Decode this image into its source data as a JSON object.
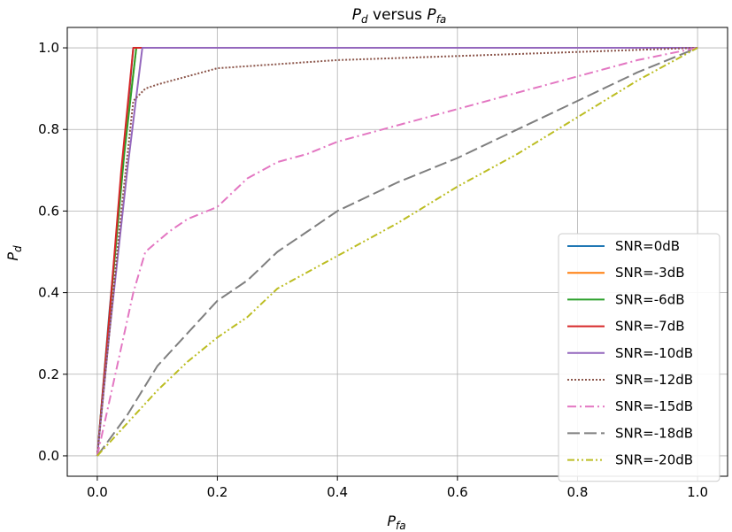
{
  "chart_data": {
    "type": "line",
    "title": {
      "main": "P",
      "main_sub": "d",
      "mid": " versus ",
      "second": "P",
      "second_sub": "fa"
    },
    "xlabel": {
      "main": "P",
      "sub": "fa"
    },
    "ylabel": {
      "main": "P",
      "sub": "d"
    },
    "xlim": [
      -0.05,
      1.05
    ],
    "ylim": [
      -0.05,
      1.05
    ],
    "x_ticks": [
      0.0,
      0.2,
      0.4,
      0.6,
      0.8,
      1.0
    ],
    "y_ticks": [
      0.0,
      0.2,
      0.4,
      0.6,
      0.8,
      1.0
    ],
    "x_tick_labels": [
      "0.0",
      "0.2",
      "0.4",
      "0.6",
      "0.8",
      "1.0"
    ],
    "y_tick_labels": [
      "0.0",
      "0.2",
      "0.4",
      "0.6",
      "0.8",
      "1.0"
    ],
    "grid": true,
    "legend_position": "lower-right",
    "series": [
      {
        "name": "SNR=0dB",
        "color": "#1f77b4",
        "dash": "solid",
        "points": [
          [
            0,
            0
          ],
          [
            0.02,
            0.35
          ],
          [
            0.045,
            0.75
          ],
          [
            0.06,
            1.0
          ],
          [
            1.0,
            1.0
          ]
        ]
      },
      {
        "name": "SNR=-3dB",
        "color": "#ff7f0e",
        "dash": "solid",
        "points": [
          [
            0,
            0
          ],
          [
            0.02,
            0.34
          ],
          [
            0.045,
            0.75
          ],
          [
            0.065,
            1.0
          ],
          [
            1.0,
            1.0
          ]
        ]
      },
      {
        "name": "SNR=-6dB",
        "color": "#2ca02c",
        "dash": "solid",
        "points": [
          [
            0,
            0
          ],
          [
            0.02,
            0.34
          ],
          [
            0.045,
            0.74
          ],
          [
            0.065,
            1.0
          ],
          [
            1.0,
            1.0
          ]
        ]
      },
      {
        "name": "SNR=-7dB",
        "color": "#d62728",
        "dash": "solid",
        "points": [
          [
            0,
            0
          ],
          [
            0.02,
            0.34
          ],
          [
            0.04,
            0.7
          ],
          [
            0.06,
            1.0
          ],
          [
            1.0,
            1.0
          ]
        ]
      },
      {
        "name": "SNR=-10dB",
        "color": "#9467bd",
        "dash": "solid",
        "points": [
          [
            0,
            0
          ],
          [
            0.02,
            0.3
          ],
          [
            0.05,
            0.7
          ],
          [
            0.075,
            1.0
          ],
          [
            1.0,
            1.0
          ]
        ]
      },
      {
        "name": "SNR=-12dB",
        "color": "#8c564b",
        "dash": "dotted",
        "points": [
          [
            0,
            0
          ],
          [
            0.02,
            0.3
          ],
          [
            0.04,
            0.6
          ],
          [
            0.06,
            0.87
          ],
          [
            0.08,
            0.9
          ],
          [
            0.1,
            0.91
          ],
          [
            0.15,
            0.93
          ],
          [
            0.2,
            0.95
          ],
          [
            0.3,
            0.96
          ],
          [
            0.4,
            0.97
          ],
          [
            0.6,
            0.98
          ],
          [
            0.8,
            0.99
          ],
          [
            1.0,
            1.0
          ]
        ]
      },
      {
        "name": "SNR=-15dB",
        "color": "#e377c2",
        "dash": "dashdot",
        "points": [
          [
            0,
            0
          ],
          [
            0.03,
            0.2
          ],
          [
            0.06,
            0.4
          ],
          [
            0.08,
            0.5
          ],
          [
            0.12,
            0.55
          ],
          [
            0.15,
            0.58
          ],
          [
            0.2,
            0.61
          ],
          [
            0.25,
            0.68
          ],
          [
            0.3,
            0.72
          ],
          [
            0.35,
            0.74
          ],
          [
            0.4,
            0.77
          ],
          [
            0.5,
            0.81
          ],
          [
            0.6,
            0.85
          ],
          [
            0.7,
            0.89
          ],
          [
            0.8,
            0.93
          ],
          [
            0.9,
            0.97
          ],
          [
            1.0,
            1.0
          ]
        ]
      },
      {
        "name": "SNR=-18dB",
        "color": "#7f7f7f",
        "dash": "dashed",
        "points": [
          [
            0,
            0
          ],
          [
            0.05,
            0.1
          ],
          [
            0.1,
            0.22
          ],
          [
            0.15,
            0.3
          ],
          [
            0.2,
            0.38
          ],
          [
            0.25,
            0.43
          ],
          [
            0.3,
            0.5
          ],
          [
            0.35,
            0.55
          ],
          [
            0.4,
            0.6
          ],
          [
            0.5,
            0.67
          ],
          [
            0.6,
            0.73
          ],
          [
            0.7,
            0.8
          ],
          [
            0.8,
            0.87
          ],
          [
            0.9,
            0.94
          ],
          [
            1.0,
            1.0
          ]
        ]
      },
      {
        "name": "SNR=-20dB",
        "color": "#bcbd22",
        "dash": "dashdotdot",
        "points": [
          [
            0,
            0
          ],
          [
            0.05,
            0.08
          ],
          [
            0.1,
            0.16
          ],
          [
            0.15,
            0.23
          ],
          [
            0.2,
            0.29
          ],
          [
            0.25,
            0.34
          ],
          [
            0.3,
            0.41
          ],
          [
            0.35,
            0.45
          ],
          [
            0.4,
            0.49
          ],
          [
            0.5,
            0.57
          ],
          [
            0.6,
            0.66
          ],
          [
            0.7,
            0.74
          ],
          [
            0.8,
            0.83
          ],
          [
            0.9,
            0.92
          ],
          [
            1.0,
            1.0
          ]
        ]
      }
    ]
  }
}
